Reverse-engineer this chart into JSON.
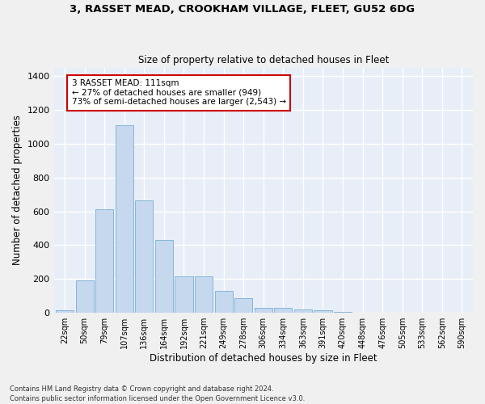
{
  "title_line1": "3, RASSET MEAD, CROOKHAM VILLAGE, FLEET, GU52 6DG",
  "title_line2": "Size of property relative to detached houses in Fleet",
  "xlabel": "Distribution of detached houses by size in Fleet",
  "ylabel": "Number of detached properties",
  "bar_color": "#c5d8ee",
  "bar_edge_color": "#7aafd4",
  "background_color": "#e8eef7",
  "grid_color": "#ffffff",
  "categories": [
    "22sqm",
    "50sqm",
    "79sqm",
    "107sqm",
    "136sqm",
    "164sqm",
    "192sqm",
    "221sqm",
    "249sqm",
    "278sqm",
    "306sqm",
    "334sqm",
    "363sqm",
    "391sqm",
    "420sqm",
    "448sqm",
    "476sqm",
    "505sqm",
    "533sqm",
    "562sqm",
    "590sqm"
  ],
  "values": [
    15,
    190,
    610,
    1110,
    665,
    430,
    215,
    215,
    130,
    85,
    30,
    28,
    20,
    13,
    5,
    3,
    2,
    1,
    1,
    0,
    0
  ],
  "ylim": [
    0,
    1450
  ],
  "yticks": [
    0,
    200,
    400,
    600,
    800,
    1000,
    1200,
    1400
  ],
  "annotation_text": "3 RASSET MEAD: 111sqm\n← 27% of detached houses are smaller (949)\n73% of semi-detached houses are larger (2,543) →",
  "annotation_box_color": "#ffffff",
  "annotation_box_edge_color": "#cc0000",
  "footer_line1": "Contains HM Land Registry data © Crown copyright and database right 2024.",
  "footer_line2": "Contains public sector information licensed under the Open Government Licence v3.0."
}
